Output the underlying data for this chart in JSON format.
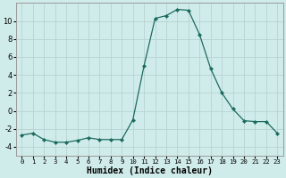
{
  "x": [
    0,
    1,
    2,
    3,
    4,
    5,
    6,
    7,
    8,
    9,
    10,
    11,
    12,
    13,
    14,
    15,
    16,
    17,
    18,
    19,
    20,
    21,
    22,
    23
  ],
  "y": [
    -2.7,
    -2.5,
    -3.2,
    -3.5,
    -3.5,
    -3.3,
    -3.0,
    -3.2,
    -3.2,
    -3.2,
    -1.0,
    5.0,
    10.3,
    10.6,
    11.3,
    11.2,
    8.5,
    4.7,
    2.0,
    0.2,
    -1.1,
    -1.2,
    -1.2,
    -2.5
  ],
  "line_color": "#1a6b5e",
  "marker_color": "#1a6b5e",
  "bg_color": "#d0ecea",
  "grid_color_major": "#b8d4d2",
  "grid_color_minor": "#c8e4e2",
  "xlabel": "Humidex (Indice chaleur)",
  "xlim": [
    -0.5,
    23.5
  ],
  "ylim": [
    -5,
    12
  ],
  "yticks": [
    -4,
    -2,
    0,
    2,
    4,
    6,
    8,
    10
  ],
  "xticks": [
    0,
    1,
    2,
    3,
    4,
    5,
    6,
    7,
    8,
    9,
    10,
    11,
    12,
    13,
    14,
    15,
    16,
    17,
    18,
    19,
    20,
    21,
    22,
    23
  ],
  "xlabel_fontsize": 7,
  "tick_fontsize": 6,
  "xtick_fontsize": 5.2
}
